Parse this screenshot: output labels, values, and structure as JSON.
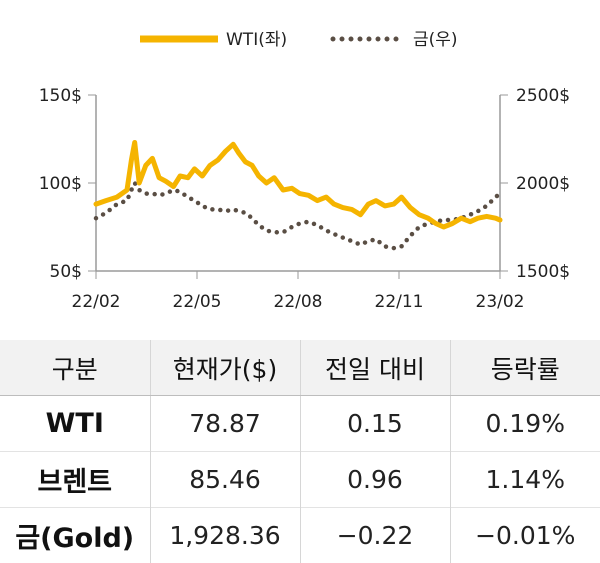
{
  "chart_data": {
    "type": "line",
    "x_ticks": [
      "22/02",
      "22/05",
      "22/08",
      "22/11",
      "23/02"
    ],
    "y_left_ticks": [
      "50$",
      "100$",
      "150$"
    ],
    "y_right_ticks": [
      "1500$",
      "2000$",
      "2500$"
    ],
    "y_left_range": [
      50,
      150
    ],
    "y_right_range": [
      1500,
      2500
    ],
    "grid": false,
    "legend_position": "top",
    "series": [
      {
        "name": "WTI(좌)",
        "axis": "left",
        "color": "#f5b400",
        "style": "solid",
        "x": [
          "22/02/01",
          "22/02/10",
          "22/02/20",
          "22/03/01",
          "22/03/05",
          "22/03/08",
          "22/03/12",
          "22/03/18",
          "22/03/24",
          "22/03/30",
          "22/04/05",
          "22/04/12",
          "22/04/18",
          "22/04/25",
          "22/05/01",
          "22/05/08",
          "22/05/15",
          "22/05/22",
          "22/05/29",
          "22/06/05",
          "22/06/10",
          "22/06/16",
          "22/06/22",
          "22/06/28",
          "22/07/05",
          "22/07/12",
          "22/07/20",
          "22/07/28",
          "22/08/04",
          "22/08/12",
          "22/08/20",
          "22/08/28",
          "22/09/04",
          "22/09/12",
          "22/09/20",
          "22/09/28",
          "22/10/05",
          "22/10/12",
          "22/10/20",
          "22/10/28",
          "22/11/04",
          "22/11/12",
          "22/11/20",
          "22/11/28",
          "22/12/05",
          "22/12/12",
          "22/12/20",
          "22/12/28",
          "23/01/05",
          "23/01/12",
          "23/01/20",
          "23/01/28",
          "23/02/01"
        ],
        "values": [
          88,
          90,
          92,
          96,
          113,
          123,
          100,
          110,
          114,
          103,
          101,
          98,
          104,
          103,
          108,
          104,
          110,
          113,
          118,
          122,
          117,
          112,
          110,
          104,
          100,
          103,
          96,
          97,
          94,
          93,
          90,
          92,
          88,
          86,
          85,
          82,
          88,
          90,
          87,
          88,
          92,
          86,
          82,
          80,
          77,
          75,
          77,
          80,
          78,
          80,
          81,
          80,
          79
        ]
      },
      {
        "name": "금(우)",
        "axis": "right",
        "color": "#5a4e44",
        "style": "dotted",
        "x": [
          "22/02/01",
          "22/02/10",
          "22/02/20",
          "22/03/01",
          "22/03/05",
          "22/03/08",
          "22/03/12",
          "22/03/18",
          "22/03/24",
          "22/03/30",
          "22/04/05",
          "22/04/12",
          "22/04/18",
          "22/04/25",
          "22/05/01",
          "22/05/08",
          "22/05/15",
          "22/05/22",
          "22/05/29",
          "22/06/05",
          "22/06/10",
          "22/06/16",
          "22/06/22",
          "22/06/28",
          "22/07/05",
          "22/07/12",
          "22/07/20",
          "22/07/28",
          "22/08/04",
          "22/08/12",
          "22/08/20",
          "22/08/28",
          "22/09/04",
          "22/09/12",
          "22/09/20",
          "22/09/28",
          "22/10/05",
          "22/10/12",
          "22/10/20",
          "22/10/28",
          "22/11/04",
          "22/11/12",
          "22/11/20",
          "22/11/28",
          "22/12/05",
          "22/12/12",
          "22/12/20",
          "22/12/28",
          "23/01/05",
          "23/01/12",
          "23/01/20",
          "23/01/28",
          "23/02/01"
        ],
        "values": [
          1800,
          1830,
          1880,
          1900,
          1960,
          2000,
          1960,
          1940,
          1940,
          1930,
          1940,
          1960,
          1950,
          1920,
          1900,
          1870,
          1850,
          1850,
          1840,
          1850,
          1840,
          1830,
          1800,
          1760,
          1730,
          1720,
          1720,
          1750,
          1770,
          1780,
          1760,
          1730,
          1710,
          1690,
          1670,
          1650,
          1670,
          1680,
          1640,
          1630,
          1640,
          1700,
          1750,
          1770,
          1780,
          1790,
          1790,
          1800,
          1820,
          1840,
          1870,
          1920,
          1940
        ]
      }
    ]
  },
  "table": {
    "headers": [
      "구분",
      "현재가($)",
      "전일 대비",
      "등락률"
    ],
    "rows": [
      [
        "WTI",
        "78.87",
        "0.15",
        "0.19%"
      ],
      [
        "브렌트",
        "85.46",
        "0.96",
        "1.14%"
      ],
      [
        "금(Gold)",
        "1,928.36",
        "−0.22",
        "−0.01%"
      ]
    ]
  }
}
